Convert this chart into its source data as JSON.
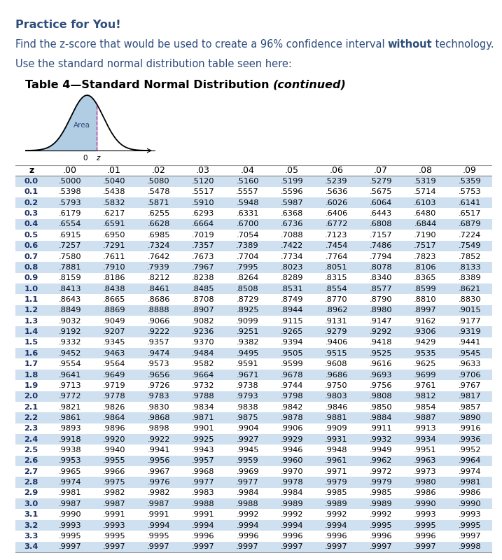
{
  "title_line1": "Practice for You!",
  "title_line2_pre": "Find the z-score that would be used to create a 96% confidence interval ",
  "title_line2_bold": "without",
  "title_line2_post": " technology.",
  "title_line3": "Use the standard normal distribution table seen here:",
  "table_title_normal": "Table 4—Standard Normal Distribution ",
  "table_title_italic": "(continued)",
  "col_headers": [
    "z",
    ".00",
    ".01",
    ".02",
    ".03",
    ".04",
    ".05",
    ".06",
    ".07",
    ".08",
    ".09"
  ],
  "z_values": [
    "0.0",
    "0.1",
    "0.2",
    "0.3",
    "0.4",
    "0.5",
    "0.6",
    "0.7",
    "0.8",
    "0.9",
    "1.0",
    "1.1",
    "1.2",
    "1.3",
    "1.4",
    "1.5",
    "1.6",
    "1.7",
    "1.8",
    "1.9",
    "2.0",
    "2.1",
    "2.2",
    "2.3",
    "2.4",
    "2.5",
    "2.6",
    "2.7",
    "2.8",
    "2.9",
    "3.0",
    "3.1",
    "3.2",
    "3.3",
    "3.4"
  ],
  "table_data": [
    [
      ".5000",
      ".5040",
      ".5080",
      ".5120",
      ".5160",
      ".5199",
      ".5239",
      ".5279",
      ".5319",
      ".5359"
    ],
    [
      ".5398",
      ".5438",
      ".5478",
      ".5517",
      ".5557",
      ".5596",
      ".5636",
      ".5675",
      ".5714",
      ".5753"
    ],
    [
      ".5793",
      ".5832",
      ".5871",
      ".5910",
      ".5948",
      ".5987",
      ".6026",
      ".6064",
      ".6103",
      ".6141"
    ],
    [
      ".6179",
      ".6217",
      ".6255",
      ".6293",
      ".6331",
      ".6368",
      ".6406",
      ".6443",
      ".6480",
      ".6517"
    ],
    [
      ".6554",
      ".6591",
      ".6628",
      ".6664",
      ".6700",
      ".6736",
      ".6772",
      ".6808",
      ".6844",
      ".6879"
    ],
    [
      ".6915",
      ".6950",
      ".6985",
      ".7019",
      ".7054",
      ".7088",
      ".7123",
      ".7157",
      ".7190",
      ".7224"
    ],
    [
      ".7257",
      ".7291",
      ".7324",
      ".7357",
      ".7389",
      ".7422",
      ".7454",
      ".7486",
      ".7517",
      ".7549"
    ],
    [
      ".7580",
      ".7611",
      ".7642",
      ".7673",
      ".7704",
      ".7734",
      ".7764",
      ".7794",
      ".7823",
      ".7852"
    ],
    [
      ".7881",
      ".7910",
      ".7939",
      ".7967",
      ".7995",
      ".8023",
      ".8051",
      ".8078",
      ".8106",
      ".8133"
    ],
    [
      ".8159",
      ".8186",
      ".8212",
      ".8238",
      ".8264",
      ".8289",
      ".8315",
      ".8340",
      ".8365",
      ".8389"
    ],
    [
      ".8413",
      ".8438",
      ".8461",
      ".8485",
      ".8508",
      ".8531",
      ".8554",
      ".8577",
      ".8599",
      ".8621"
    ],
    [
      ".8643",
      ".8665",
      ".8686",
      ".8708",
      ".8729",
      ".8749",
      ".8770",
      ".8790",
      ".8810",
      ".8830"
    ],
    [
      ".8849",
      ".8869",
      ".8888",
      ".8907",
      ".8925",
      ".8944",
      ".8962",
      ".8980",
      ".8997",
      ".9015"
    ],
    [
      ".9032",
      ".9049",
      ".9066",
      ".9082",
      ".9099",
      ".9115",
      ".9131",
      ".9147",
      ".9162",
      ".9177"
    ],
    [
      ".9192",
      ".9207",
      ".9222",
      ".9236",
      ".9251",
      ".9265",
      ".9279",
      ".9292",
      ".9306",
      ".9319"
    ],
    [
      ".9332",
      ".9345",
      ".9357",
      ".9370",
      ".9382",
      ".9394",
      ".9406",
      ".9418",
      ".9429",
      ".9441"
    ],
    [
      ".9452",
      ".9463",
      ".9474",
      ".9484",
      ".9495",
      ".9505",
      ".9515",
      ".9525",
      ".9535",
      ".9545"
    ],
    [
      ".9554",
      ".9564",
      ".9573",
      ".9582",
      ".9591",
      ".9599",
      ".9608",
      ".9616",
      ".9625",
      ".9633"
    ],
    [
      ".9641",
      ".9649",
      ".9656",
      ".9664",
      ".9671",
      ".9678",
      ".9686",
      ".9693",
      ".9699",
      ".9706"
    ],
    [
      ".9713",
      ".9719",
      ".9726",
      ".9732",
      ".9738",
      ".9744",
      ".9750",
      ".9756",
      ".9761",
      ".9767"
    ],
    [
      ".9772",
      ".9778",
      ".9783",
      ".9788",
      ".9793",
      ".9798",
      ".9803",
      ".9808",
      ".9812",
      ".9817"
    ],
    [
      ".9821",
      ".9826",
      ".9830",
      ".9834",
      ".9838",
      ".9842",
      ".9846",
      ".9850",
      ".9854",
      ".9857"
    ],
    [
      ".9861",
      ".9864",
      ".9868",
      ".9871",
      ".9875",
      ".9878",
      ".9881",
      ".9884",
      ".9887",
      ".9890"
    ],
    [
      ".9893",
      ".9896",
      ".9898",
      ".9901",
      ".9904",
      ".9906",
      ".9909",
      ".9911",
      ".9913",
      ".9916"
    ],
    [
      ".9918",
      ".9920",
      ".9922",
      ".9925",
      ".9927",
      ".9929",
      ".9931",
      ".9932",
      ".9934",
      ".9936"
    ],
    [
      ".9938",
      ".9940",
      ".9941",
      ".9943",
      ".9945",
      ".9946",
      ".9948",
      ".9949",
      ".9951",
      ".9952"
    ],
    [
      ".9953",
      ".9955",
      ".9956",
      ".9957",
      ".9959",
      ".9960",
      ".9961",
      ".9962",
      ".9963",
      ".9964"
    ],
    [
      ".9965",
      ".9966",
      ".9967",
      ".9968",
      ".9969",
      ".9970",
      ".9971",
      ".9972",
      ".9973",
      ".9974"
    ],
    [
      ".9974",
      ".9975",
      ".9976",
      ".9977",
      ".9977",
      ".9978",
      ".9979",
      ".9979",
      ".9980",
      ".9981"
    ],
    [
      ".9981",
      ".9982",
      ".9982",
      ".9983",
      ".9984",
      ".9984",
      ".9985",
      ".9985",
      ".9986",
      ".9986"
    ],
    [
      ".9987",
      ".9987",
      ".9987",
      ".9988",
      ".9988",
      ".9989",
      ".9989",
      ".9989",
      ".9990",
      ".9990"
    ],
    [
      ".9990",
      ".9991",
      ".9991",
      ".9991",
      ".9992",
      ".9992",
      ".9992",
      ".9992",
      ".9993",
      ".9993"
    ],
    [
      ".9993",
      ".9993",
      ".9994",
      ".9994",
      ".9994",
      ".9994",
      ".9994",
      ".9995",
      ".9995",
      ".9995"
    ],
    [
      ".9995",
      ".9995",
      ".9995",
      ".9996",
      ".9996",
      ".9996",
      ".9996",
      ".9996",
      ".9996",
      ".9997"
    ],
    [
      ".9997",
      ".9997",
      ".9997",
      ".9997",
      ".9997",
      ".9997",
      ".9997",
      ".9997",
      ".9997",
      ".9998"
    ]
  ],
  "text_color": "#2e4d7b",
  "row_bg_blue": "#cfe0f0",
  "row_bg_white": "#ffffff",
  "header_bg": "#ffffff",
  "z_col_color": "#1a3260",
  "border_color": "#999999",
  "fs_title1": 11.5,
  "fs_title2": 10.5,
  "fs_table_title": 11.5,
  "fs_table_header": 9,
  "fs_table_data": 8.2,
  "fs_bell_label": 7.5
}
